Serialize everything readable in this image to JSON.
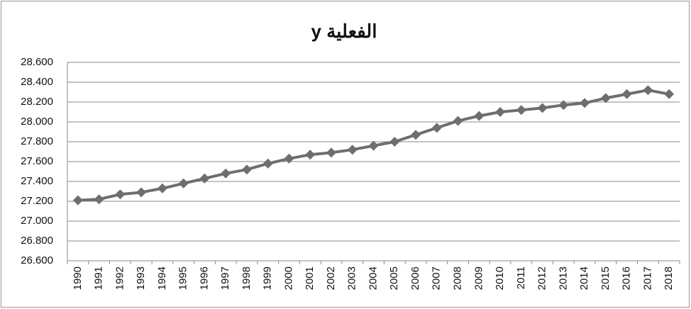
{
  "chart_data": {
    "type": "line",
    "title": "y الفعلية",
    "categories": [
      "1990",
      "1991",
      "1992",
      "1993",
      "1994",
      "1995",
      "1996",
      "1997",
      "1998",
      "1999",
      "2000",
      "2001",
      "2002",
      "2003",
      "2004",
      "2005",
      "2006",
      "2007",
      "2008",
      "2009",
      "2010",
      "2011",
      "2012",
      "2013",
      "2014",
      "2015",
      "2016",
      "2017",
      "2018"
    ],
    "values": [
      27.21,
      27.22,
      27.27,
      27.29,
      27.33,
      27.38,
      27.43,
      27.48,
      27.52,
      27.58,
      27.63,
      27.67,
      27.69,
      27.72,
      27.76,
      27.8,
      27.87,
      27.94,
      28.01,
      28.06,
      28.1,
      28.12,
      28.14,
      28.17,
      28.19,
      28.24,
      28.28,
      28.32,
      28.28
    ],
    "color": "#6e6e6e",
    "ylim": [
      26.6,
      28.6
    ],
    "yticks": [
      {
        "value": 26.6,
        "label": "26.600"
      },
      {
        "value": 26.8,
        "label": "26.800"
      },
      {
        "value": 27.0,
        "label": "27.000"
      },
      {
        "value": 27.2,
        "label": "27.200"
      },
      {
        "value": 27.4,
        "label": "27.400"
      },
      {
        "value": 27.6,
        "label": "27.600"
      },
      {
        "value": 27.8,
        "label": "27.800"
      },
      {
        "value": 28.0,
        "label": "28.000"
      },
      {
        "value": 28.2,
        "label": "28.200"
      },
      {
        "value": 28.4,
        "label": "28.400"
      },
      {
        "value": 28.6,
        "label": "28.600"
      }
    ],
    "grid": true
  }
}
